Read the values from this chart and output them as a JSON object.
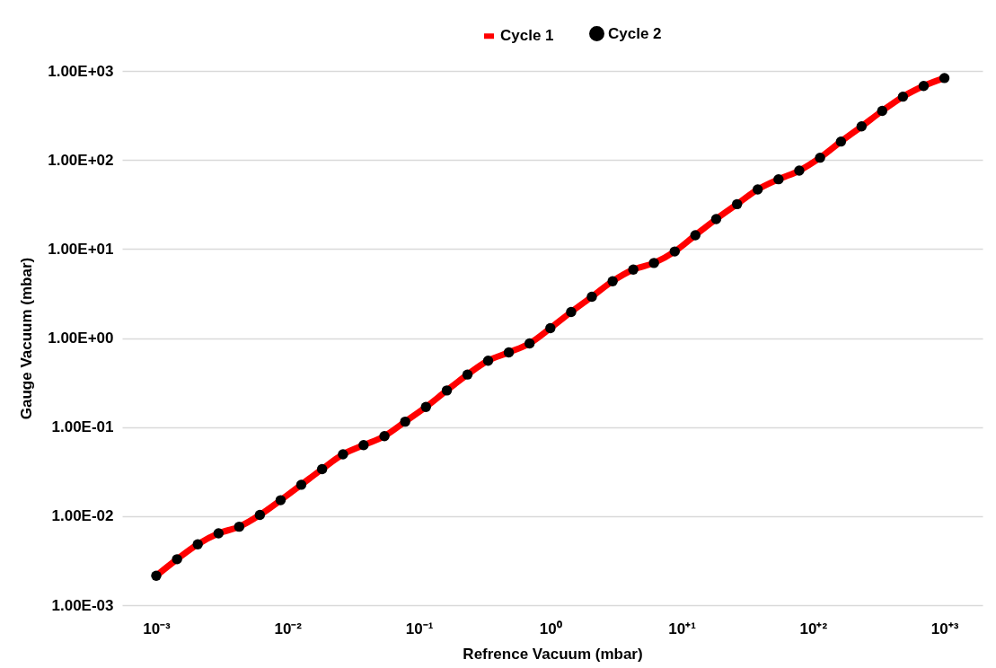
{
  "chart_data": {
    "type": "line",
    "xlabel": "Refrence Vacuum (mbar)",
    "ylabel": "Gauge Vacuum (mbar)",
    "x": [
      0.001,
      0.00144,
      0.00207,
      0.00298,
      0.00428,
      0.00615,
      0.00885,
      0.0127,
      0.0183,
      0.0264,
      0.0379,
      0.0546,
      0.0785,
      0.113,
      0.163,
      0.234,
      0.336,
      0.483,
      0.695,
      1,
      1.44,
      2.07,
      2.98,
      4.28,
      6.15,
      8.85,
      12.7,
      18.3,
      26.4,
      37.9,
      54.6,
      78.5,
      113,
      163,
      234,
      336,
      483,
      695,
      1000
    ],
    "series": [
      {
        "name": "Cycle 1",
        "type": "line",
        "color": "#ff0000",
        "marker": "none",
        "values": [
          0.00214,
          0.00328,
          0.00482,
          0.0064,
          0.0076,
          0.0103,
          0.0151,
          0.0225,
          0.0337,
          0.0495,
          0.0628,
          0.0792,
          0.115,
          0.168,
          0.258,
          0.389,
          0.557,
          0.69,
          0.871,
          1.29,
          1.96,
          2.91,
          4.35,
          5.87,
          6.97,
          9.38,
          14.3,
          21.7,
          31.9,
          46.6,
          60.7,
          75.9,
          106,
          161,
          238,
          356,
          514,
          678,
          832
        ]
      },
      {
        "name": "Cycle 2",
        "type": "scatter",
        "color": "#000000",
        "marker": "circle",
        "values": [
          0.00214,
          0.00328,
          0.00482,
          0.0064,
          0.0076,
          0.0103,
          0.0151,
          0.0225,
          0.0337,
          0.0495,
          0.0628,
          0.0792,
          0.115,
          0.168,
          0.258,
          0.389,
          0.557,
          0.69,
          0.871,
          1.29,
          1.96,
          2.91,
          4.35,
          5.87,
          6.97,
          9.38,
          14.3,
          21.7,
          31.9,
          46.6,
          60.7,
          75.9,
          106,
          161,
          238,
          356,
          514,
          678,
          832
        ]
      }
    ],
    "log": "xy",
    "xlim": [
      0.00055,
      1950
    ],
    "xticks": [
      {
        "value": 0.001,
        "label": "10⁻³"
      },
      {
        "value": 0.01,
        "label": "10⁻²"
      },
      {
        "value": 0.1,
        "label": "10⁻¹"
      },
      {
        "value": 1,
        "label": "10⁰"
      },
      {
        "value": 10,
        "label": "10⁺¹"
      },
      {
        "value": 100,
        "label": "10⁺²"
      },
      {
        "value": 1000,
        "label": "10⁺³"
      }
    ],
    "ylim": [
      0.001,
      1000
    ],
    "yticks": [
      {
        "value": 0.001,
        "label": "1.00E-03"
      },
      {
        "value": 0.01,
        "label": "1.00E-02"
      },
      {
        "value": 0.1,
        "label": "1.00E-01"
      },
      {
        "value": 1,
        "label": "1.00E+00"
      },
      {
        "value": 10,
        "label": "1.00E+01"
      },
      {
        "value": 100,
        "label": "1.00E+02"
      },
      {
        "value": 1000,
        "label": "1.00E+03"
      }
    ],
    "grid": "y",
    "legend": "top",
    "line_style": "solid"
  }
}
